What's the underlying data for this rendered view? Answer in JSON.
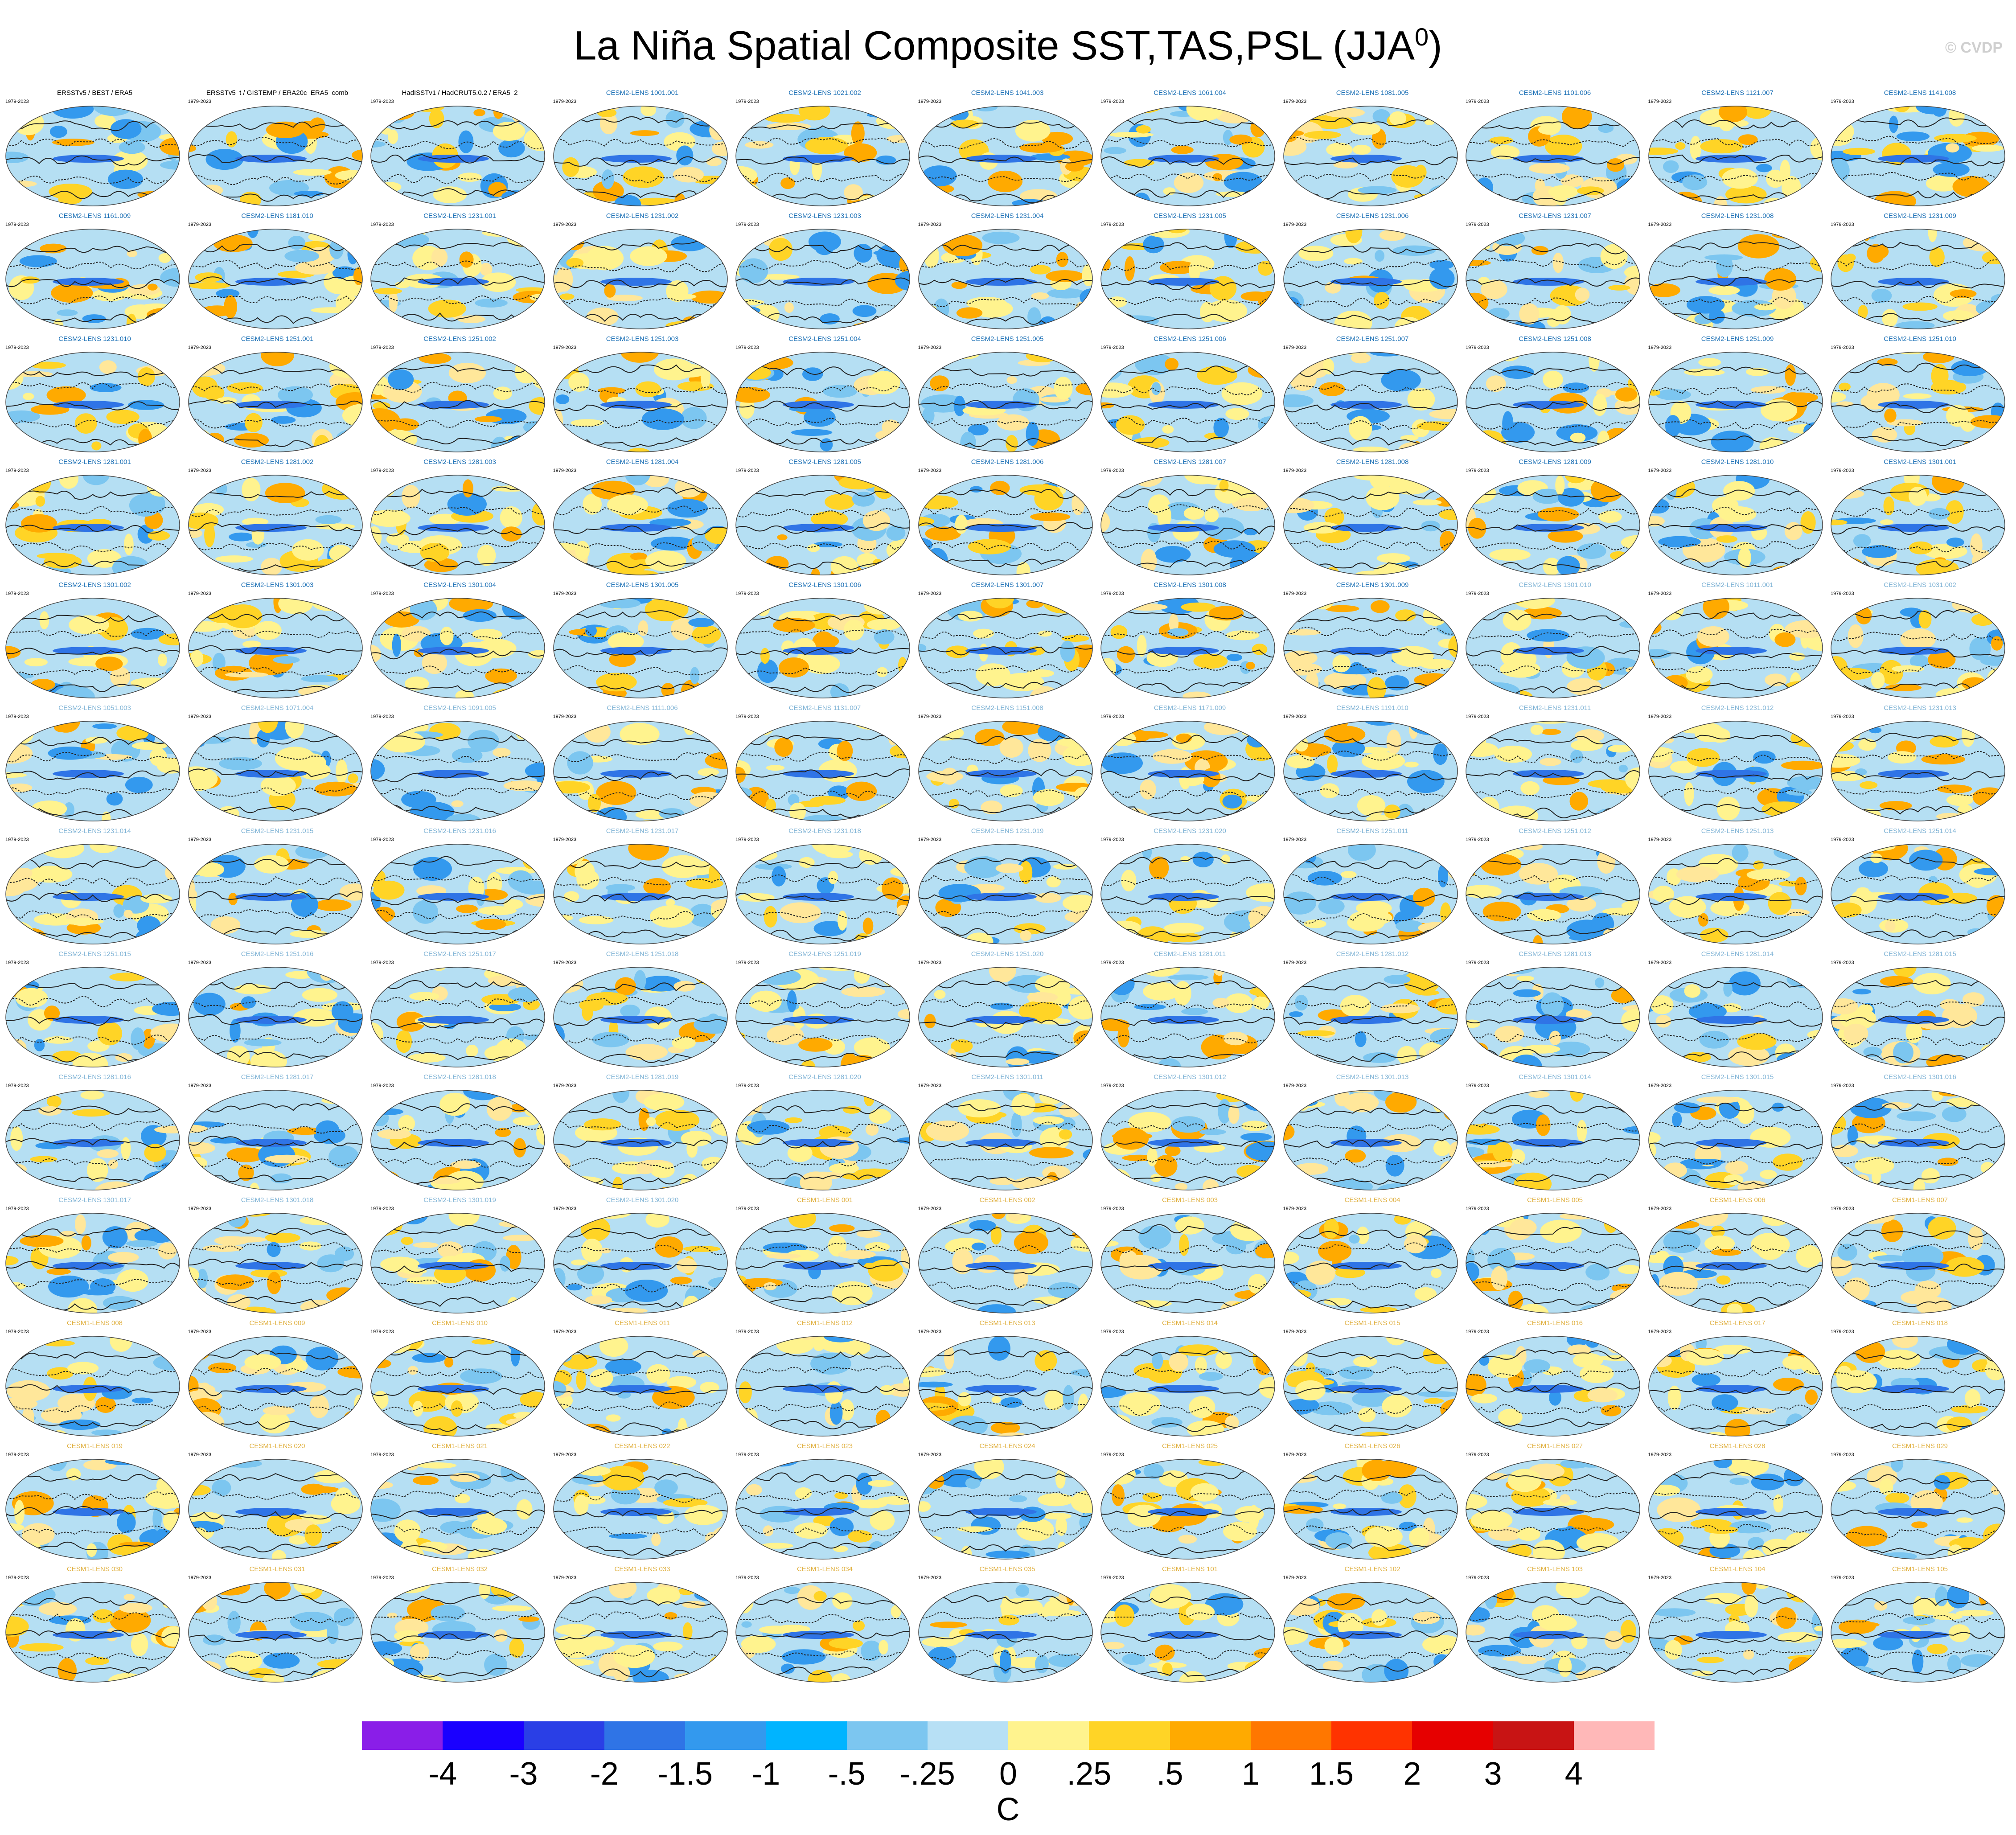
{
  "title": "La Niña Spatial Composite SST,TAS,PSL (JJA",
  "title_superscript": "0",
  "watermark": "© CVDP",
  "period_label": "1979-2023",
  "colors": {
    "obs_title": "#000000",
    "cesm2_title": "#1a6fb5",
    "cesm2_late_title": "#7fb3d5",
    "cesm1_title": "#e0b040",
    "ocean_cool": "#b5dff3",
    "land_warm": "#ffe79a",
    "contour": "#222222"
  },
  "panels": [
    "ERSSTv5 / BEST / ERA5",
    "ERSSTv5_t / GISTEMP / ERA20c_ERA5_comb",
    "HadISSTv1 / HadCRUT5.0.2 / ERA5_2",
    "CESM2-LENS 1001.001",
    "CESM2-LENS 1021.002",
    "CESM2-LENS 1041.003",
    "CESM2-LENS 1061.004",
    "CESM2-LENS 1081.005",
    "CESM2-LENS 1101.006",
    "CESM2-LENS 1121.007",
    "CESM2-LENS 1141.008",
    "CESM2-LENS 1161.009",
    "CESM2-LENS 1181.010",
    "CESM2-LENS 1231.001",
    "CESM2-LENS 1231.002",
    "CESM2-LENS 1231.003",
    "CESM2-LENS 1231.004",
    "CESM2-LENS 1231.005",
    "CESM2-LENS 1231.006",
    "CESM2-LENS 1231.007",
    "CESM2-LENS 1231.008",
    "CESM2-LENS 1231.009",
    "CESM2-LENS 1231.010",
    "CESM2-LENS 1251.001",
    "CESM2-LENS 1251.002",
    "CESM2-LENS 1251.003",
    "CESM2-LENS 1251.004",
    "CESM2-LENS 1251.005",
    "CESM2-LENS 1251.006",
    "CESM2-LENS 1251.007",
    "CESM2-LENS 1251.008",
    "CESM2-LENS 1251.009",
    "CESM2-LENS 1251.010",
    "CESM2-LENS 1281.001",
    "CESM2-LENS 1281.002",
    "CESM2-LENS 1281.003",
    "CESM2-LENS 1281.004",
    "CESM2-LENS 1281.005",
    "CESM2-LENS 1281.006",
    "CESM2-LENS 1281.007",
    "CESM2-LENS 1281.008",
    "CESM2-LENS 1281.009",
    "CESM2-LENS 1281.010",
    "CESM2-LENS 1301.001",
    "CESM2-LENS 1301.002",
    "CESM2-LENS 1301.003",
    "CESM2-LENS 1301.004",
    "CESM2-LENS 1301.005",
    "CESM2-LENS 1301.006",
    "CESM2-LENS 1301.007",
    "CESM2-LENS 1301.008",
    "CESM2-LENS 1301.009",
    "CESM2-LENS 1301.010",
    "CESM2-LENS 1011.001",
    "CESM2-LENS 1031.002",
    "CESM2-LENS 1051.003",
    "CESM2-LENS 1071.004",
    "CESM2-LENS 1091.005",
    "CESM2-LENS 1111.006",
    "CESM2-LENS 1131.007",
    "CESM2-LENS 1151.008",
    "CESM2-LENS 1171.009",
    "CESM2-LENS 1191.010",
    "CESM2-LENS 1231.011",
    "CESM2-LENS 1231.012",
    "CESM2-LENS 1231.013",
    "CESM2-LENS 1231.014",
    "CESM2-LENS 1231.015",
    "CESM2-LENS 1231.016",
    "CESM2-LENS 1231.017",
    "CESM2-LENS 1231.018",
    "CESM2-LENS 1231.019",
    "CESM2-LENS 1231.020",
    "CESM2-LENS 1251.011",
    "CESM2-LENS 1251.012",
    "CESM2-LENS 1251.013",
    "CESM2-LENS 1251.014",
    "CESM2-LENS 1251.015",
    "CESM2-LENS 1251.016",
    "CESM2-LENS 1251.017",
    "CESM2-LENS 1251.018",
    "CESM2-LENS 1251.019",
    "CESM2-LENS 1251.020",
    "CESM2-LENS 1281.011",
    "CESM2-LENS 1281.012",
    "CESM2-LENS 1281.013",
    "CESM2-LENS 1281.014",
    "CESM2-LENS 1281.015",
    "CESM2-LENS 1281.016",
    "CESM2-LENS 1281.017",
    "CESM2-LENS 1281.018",
    "CESM2-LENS 1281.019",
    "CESM2-LENS 1281.020",
    "CESM2-LENS 1301.011",
    "CESM2-LENS 1301.012",
    "CESM2-LENS 1301.013",
    "CESM2-LENS 1301.014",
    "CESM2-LENS 1301.015",
    "CESM2-LENS 1301.016",
    "CESM2-LENS 1301.017",
    "CESM2-LENS 1301.018",
    "CESM2-LENS 1301.019",
    "CESM2-LENS 1301.020",
    "CESM1-LENS 001",
    "CESM1-LENS 002",
    "CESM1-LENS 003",
    "CESM1-LENS 004",
    "CESM1-LENS 005",
    "CESM1-LENS 006",
    "CESM1-LENS 007",
    "CESM1-LENS 008",
    "CESM1-LENS 009",
    "CESM1-LENS 010",
    "CESM1-LENS 011",
    "CESM1-LENS 012",
    "CESM1-LENS 013",
    "CESM1-LENS 014",
    "CESM1-LENS 015",
    "CESM1-LENS 016",
    "CESM1-LENS 017",
    "CESM1-LENS 018",
    "CESM1-LENS 019",
    "CESM1-LENS 020",
    "CESM1-LENS 021",
    "CESM1-LENS 022",
    "CESM1-LENS 023",
    "CESM1-LENS 024",
    "CESM1-LENS 025",
    "CESM1-LENS 026",
    "CESM1-LENS 027",
    "CESM1-LENS 028",
    "CESM1-LENS 029",
    "CESM1-LENS 030",
    "CESM1-LENS 031",
    "CESM1-LENS 032",
    "CESM1-LENS 033",
    "CESM1-LENS 034",
    "CESM1-LENS 035",
    "CESM1-LENS 101",
    "CESM1-LENS 102",
    "CESM1-LENS 103",
    "CESM1-LENS 104",
    "CESM1-LENS 105"
  ],
  "colorbar": {
    "colors": [
      "#8a1ee8",
      "#1a00ff",
      "#2a3fe6",
      "#2f74e6",
      "#3399ee",
      "#00b4ff",
      "#7cc6f0",
      "#b7e0f5",
      "#fff38e",
      "#ffd426",
      "#ffaa00",
      "#ff7700",
      "#ff3300",
      "#e60000",
      "#c81414",
      "#ffb8b8"
    ],
    "ticks": [
      "-4",
      "-3",
      "-2",
      "-1.5",
      "-1",
      "-.5",
      "-.25",
      "0",
      ".25",
      ".5",
      "1",
      "1.5",
      "2",
      "3",
      "4"
    ],
    "units": "C"
  }
}
